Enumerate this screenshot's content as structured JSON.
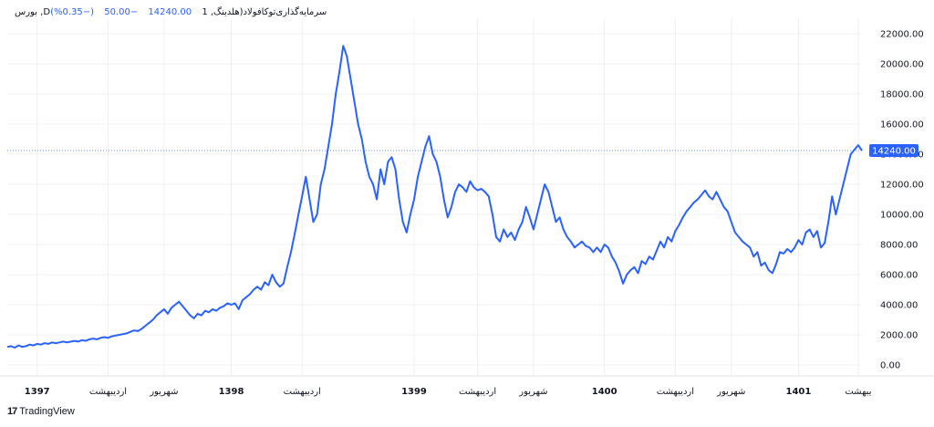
{
  "header": {
    "symbol": "بورس ,Dسرمایه‌گذاری‌توکافولاد(هلدینگ, 1",
    "price": "14240.00",
    "change": "−50.00",
    "change_pct": "(−0.35%)"
  },
  "footer": {
    "brand": "TradingView",
    "logo_glyph": "17"
  },
  "colors": {
    "line": "#2962ff",
    "grid": "#eef0f3",
    "text": "#131722",
    "badge": "#2962ff"
  },
  "chart_data": {
    "type": "line",
    "ylim": [
      -500,
      22500
    ],
    "yticks": [
      "22000.00",
      "20000.00",
      "18000.00",
      "16000.00",
      "14000.00",
      "12000.00",
      "10000.00",
      "8000.00",
      "6000.00",
      "4000.00",
      "2000.00",
      "0.00"
    ],
    "ytick_values": [
      22000,
      20000,
      18000,
      16000,
      14000,
      12000,
      10000,
      8000,
      6000,
      4000,
      2000,
      0
    ],
    "last_price": 14240,
    "last_price_label": "14240.00",
    "xticks": [
      {
        "label": "1397",
        "bold": true,
        "i": 8
      },
      {
        "label": "اردیبهشت",
        "bold": false,
        "i": 27
      },
      {
        "label": "شهریور",
        "bold": false,
        "i": 42
      },
      {
        "label": "1398",
        "bold": true,
        "i": 60
      },
      {
        "label": "اردیبهشت",
        "bold": false,
        "i": 79
      },
      {
        "label": "1399",
        "bold": true,
        "i": 109
      },
      {
        "label": "اردیبهشت",
        "bold": false,
        "i": 126
      },
      {
        "label": "شهریور",
        "bold": false,
        "i": 141
      },
      {
        "label": "1400",
        "bold": true,
        "i": 160
      },
      {
        "label": "اردیبهشت",
        "bold": false,
        "i": 179
      },
      {
        "label": "شهریور",
        "bold": false,
        "i": 194
      },
      {
        "label": "1401",
        "bold": true,
        "i": 212
      },
      {
        "label": "یبهشت",
        "bold": false,
        "i": 228
      }
    ],
    "series": [
      {
        "values": [
          1200,
          1250,
          1150,
          1300,
          1200,
          1250,
          1350,
          1300,
          1400,
          1350,
          1450,
          1400,
          1500,
          1450,
          1500,
          1550,
          1500,
          1550,
          1600,
          1550,
          1650,
          1600,
          1700,
          1750,
          1700,
          1800,
          1850,
          1800,
          1900,
          1950,
          2000,
          2050,
          2100,
          2200,
          2300,
          2250,
          2400,
          2600,
          2800,
          3000,
          3300,
          3500,
          3700,
          3400,
          3800,
          4000,
          4200,
          3900,
          3600,
          3300,
          3100,
          3400,
          3300,
          3600,
          3500,
          3700,
          3600,
          3800,
          3900,
          4100,
          4000,
          4100,
          3700,
          4300,
          4500,
          4700,
          5000,
          5200,
          5000,
          5500,
          5300,
          6000,
          5500,
          5200,
          5400,
          6500,
          7500,
          8700,
          10000,
          11200,
          12500,
          11000,
          9500,
          10000,
          12000,
          13000,
          14500,
          16000,
          18000,
          19500,
          21200,
          20500,
          19000,
          17500,
          16000,
          15000,
          13500,
          12500,
          12000,
          11000,
          13000,
          12000,
          13500,
          13800,
          13000,
          11000,
          9500,
          8800,
          10000,
          11000,
          12500,
          13500,
          14500,
          15200,
          14000,
          13500,
          12500,
          11000,
          9800,
          10500,
          11500,
          12000,
          11800,
          11500,
          12200,
          11800,
          11600,
          11700,
          11500,
          11200,
          10000,
          8500,
          8200,
          9000,
          8500,
          8800,
          8300,
          9000,
          9500,
          10500,
          9800,
          9000,
          10000,
          11000,
          12000,
          11500,
          10500,
          9500,
          9800,
          9000,
          8500,
          8200,
          7800,
          8000,
          8200,
          7900,
          7800,
          7500,
          7800,
          7500,
          8000,
          7800,
          7200,
          6800,
          6200,
          5400,
          6000,
          6300,
          6500,
          6100,
          6900,
          6700,
          7200,
          7000,
          7600,
          8200,
          7800,
          8500,
          8200,
          8900,
          9300,
          9800,
          10200,
          10500,
          10800,
          11000,
          11300,
          11600,
          11200,
          11000,
          11500,
          11000,
          10500,
          10200,
          9500,
          8800,
          8500,
          8200,
          8000,
          7800,
          7200,
          7500,
          6600,
          6800,
          6300,
          6100,
          6700,
          7500,
          7400,
          7700,
          7500,
          7800,
          8300,
          8000,
          8800,
          9000,
          8500,
          8900,
          7800,
          8100,
          9500,
          11200,
          10000,
          11000,
          12000,
          13000,
          14000,
          14300,
          14600,
          14240
        ]
      }
    ]
  }
}
